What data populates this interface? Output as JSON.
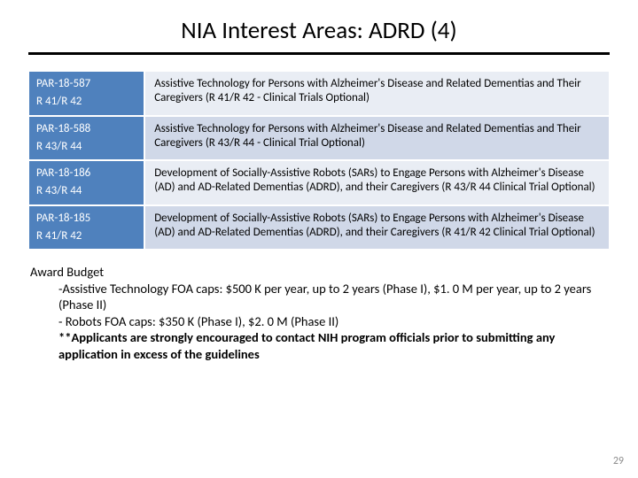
{
  "title": "NIA Interest Areas: ADRD (4)",
  "table": {
    "header_bg": "#4f81bd",
    "row_bg_a": "#e9edf4",
    "row_bg_b": "#d0d8e8",
    "rows": [
      {
        "code": "PAR-18-587",
        "mechanism": " R 41/R 42",
        "desc": "Assistive Technology for Persons with Alzheimer's Disease and Related Dementias and Their Caregivers (R 41/R 42 - Clinical Trials Optional)"
      },
      {
        "code": "PAR-18-588",
        "mechanism": "R 43/R 44",
        "desc": "Assistive Technology for Persons with Alzheimer's Disease and Related Dementias and Their Caregivers (R 43/R 44 - Clinical Trial Optional)"
      },
      {
        "code": "PAR-18-186",
        "mechanism": "R 43/R 44",
        "desc": "Development of Socially-Assistive Robots (SARs) to Engage Persons with Alzheimer's Disease (AD) and AD-Related Dementias (ADRD), and their Caregivers (R 43/R 44 Clinical Trial Optional)"
      },
      {
        "code": "PAR-18-185",
        "mechanism": "R 41/R 42",
        "desc": "Development of Socially-Assistive Robots (SARs) to Engage Persons with Alzheimer's Disease (AD) and AD-Related Dementias (ADRD), and their Caregivers (R 41/R 42 Clinical Trial Optional)"
      }
    ]
  },
  "notes": {
    "heading": "Award Budget",
    "items": [
      "-Assistive Technology FOA caps: $500 K per year, up to 2 years (Phase I), $1. 0 M per year, up to 2 years (Phase II)",
      "- Robots FOA caps: $350 K (Phase I), $2. 0 M (Phase II)"
    ],
    "bold_item": " **Applicants are strongly encouraged to contact NIH program officials prior to submitting any application in excess of the guidelines"
  },
  "page_number": "29"
}
